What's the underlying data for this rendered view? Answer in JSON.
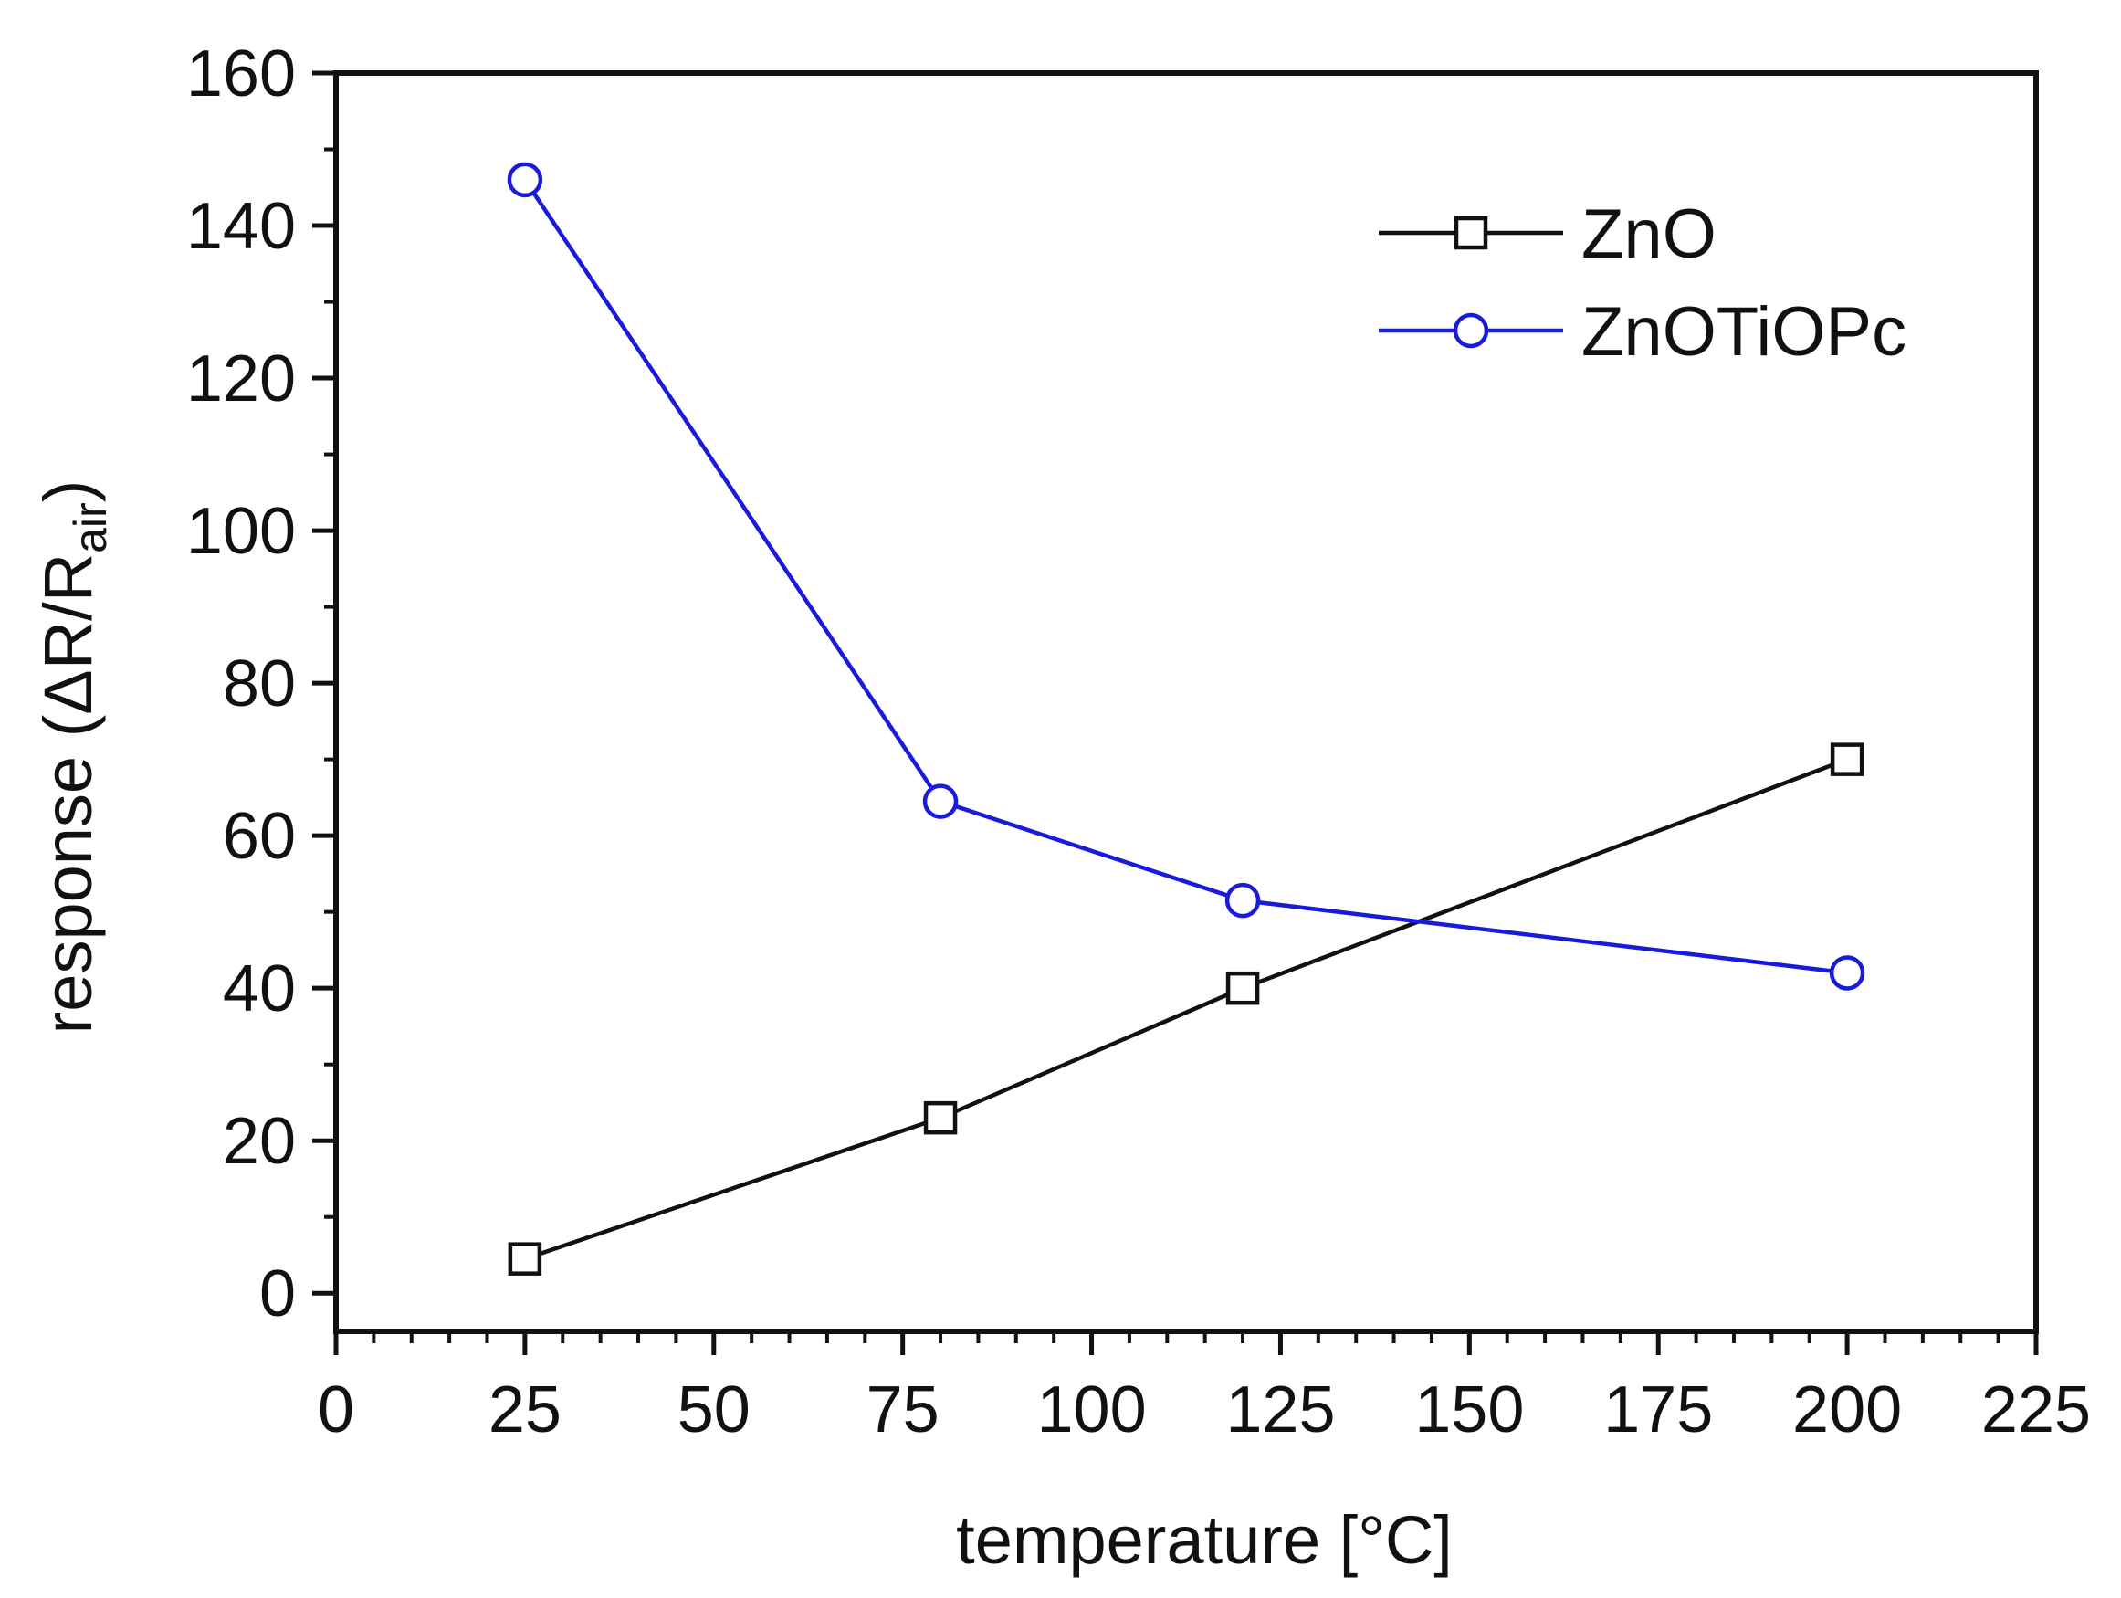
{
  "chart_data": {
    "type": "line",
    "title": "",
    "xlabel": "temperature [°C]",
    "ylabel": {
      "prefix": "response (ΔR/R",
      "subscript": "air",
      "suffix": ")"
    },
    "xlim": [
      0,
      225
    ],
    "ylim": [
      -5,
      160
    ],
    "xticks": [
      0,
      25,
      50,
      75,
      100,
      125,
      150,
      175,
      200,
      225
    ],
    "xtick_labels": [
      "0",
      "25",
      "50",
      "75",
      "100",
      "125",
      "150",
      "175",
      "200",
      "225"
    ],
    "yticks": [
      0,
      20,
      40,
      60,
      80,
      100,
      120,
      140,
      160
    ],
    "ytick_labels": [
      "0",
      "20",
      "40",
      "60",
      "80",
      "100",
      "120",
      "140",
      "160"
    ],
    "x_minor_step": 5,
    "y_minor_step": 10,
    "grid": false,
    "legend_position": "top-right",
    "series": [
      {
        "name": "ZnO",
        "color": "#111111",
        "marker": "square",
        "x": [
          25,
          80,
          120,
          200
        ],
        "values": [
          4.5,
          23,
          40,
          70
        ]
      },
      {
        "name": "ZnOTiOPc",
        "color": "#1a1adb",
        "marker": "circle",
        "x": [
          25,
          80,
          120,
          200
        ],
        "values": [
          146,
          64.5,
          51.5,
          42
        ]
      }
    ]
  }
}
